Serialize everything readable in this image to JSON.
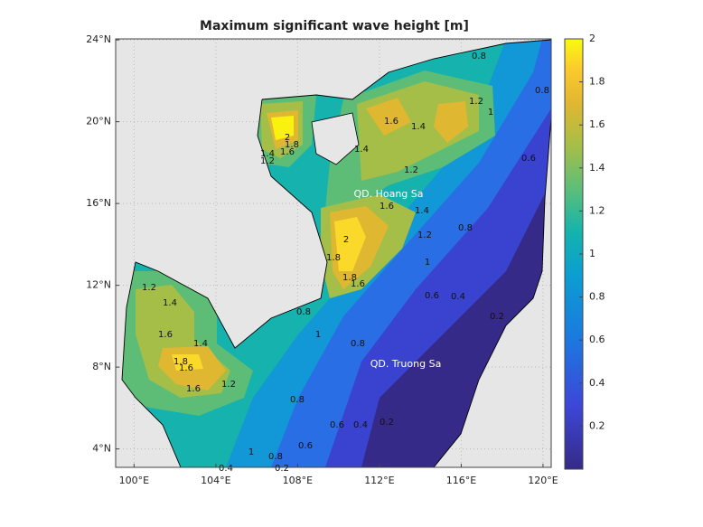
{
  "title": "Maximum significant wave height [m]",
  "map": {
    "xlim": [
      99.1,
      120.4
    ],
    "ylim": [
      3.1,
      24.05
    ],
    "xticks": [
      {
        "value": 100,
        "label": "100°E"
      },
      {
        "value": 104,
        "label": "104°E"
      },
      {
        "value": 108,
        "label": "108°E"
      },
      {
        "value": 112,
        "label": "112°E"
      },
      {
        "value": 116,
        "label": "116°E"
      },
      {
        "value": 120,
        "label": "120°E"
      }
    ],
    "yticks": [
      {
        "value": 4,
        "label": "4°N"
      },
      {
        "value": 8,
        "label": "8°N"
      },
      {
        "value": 12,
        "label": "12°N"
      },
      {
        "value": 16,
        "label": "16°N"
      },
      {
        "value": 20,
        "label": "20°N"
      },
      {
        "value": 24,
        "label": "24°N"
      }
    ],
    "grid": true
  },
  "colorbar": {
    "ylim": [
      0,
      2
    ],
    "yticks": [
      0.2,
      0.4,
      0.6,
      0.8,
      1,
      1.2,
      1.4,
      1.6,
      1.8,
      2
    ]
  },
  "contour_labels": [
    0.8,
    1.2,
    1,
    1.6,
    1.4,
    1.2,
    1.4,
    2,
    1.8,
    1.6,
    1.4,
    1.2,
    0.8,
    0.6,
    0.8,
    1.4,
    1.6,
    1.2,
    1,
    2,
    1.8,
    1.8,
    1.6,
    0.6,
    0.4,
    0.2,
    1.2,
    1.4,
    1.6,
    1.4,
    1.8,
    1.6,
    1.6,
    1.2,
    0.8,
    1,
    0.8,
    0.8,
    0.6,
    0.4,
    0.2,
    1,
    0.8,
    0.6,
    0.2,
    0.4
  ],
  "annotations": [
    "QD. Hoang Sa",
    "QD. Truong Sa"
  ]
}
